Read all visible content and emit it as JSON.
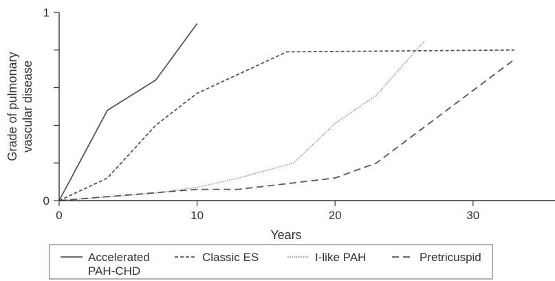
{
  "chart_data": {
    "type": "line",
    "title": "",
    "xlabel": "Years",
    "ylabel": "Grade of pulmonary vascular disease",
    "xlim": [
      0,
      33
    ],
    "ylim": [
      0,
      1
    ],
    "x_ticks": [
      0,
      10,
      20,
      30
    ],
    "y_tick_labels": [
      "0",
      "1"
    ],
    "y_gridlines": false,
    "legend_position": "bottom",
    "series": [
      {
        "name": "Accelerated PAH-CHD",
        "dash": "solid",
        "color": "#555555",
        "points": [
          [
            0,
            0
          ],
          [
            3.5,
            0.48
          ],
          [
            7,
            0.64
          ],
          [
            10,
            0.94
          ]
        ]
      },
      {
        "name": "Classic ES",
        "dash": "short-dash",
        "color": "#555555",
        "points": [
          [
            0,
            0
          ],
          [
            3.5,
            0.12
          ],
          [
            7,
            0.4
          ],
          [
            10,
            0.57
          ],
          [
            16.5,
            0.79
          ],
          [
            33,
            0.8
          ]
        ]
      },
      {
        "name": "I-like PAH",
        "dash": "dotted",
        "color": "#999999",
        "points": [
          [
            0,
            0
          ],
          [
            7,
            0.04
          ],
          [
            10,
            0.07
          ],
          [
            13,
            0.12
          ],
          [
            17,
            0.2
          ],
          [
            20,
            0.41
          ],
          [
            23,
            0.56
          ],
          [
            26.5,
            0.85
          ]
        ]
      },
      {
        "name": "Pretricuspid",
        "dash": "long-dash",
        "color": "#555555",
        "points": [
          [
            0,
            0
          ],
          [
            10,
            0.06
          ],
          [
            13,
            0.06
          ],
          [
            20,
            0.12
          ],
          [
            23,
            0.2
          ],
          [
            33,
            0.75
          ]
        ]
      }
    ]
  }
}
